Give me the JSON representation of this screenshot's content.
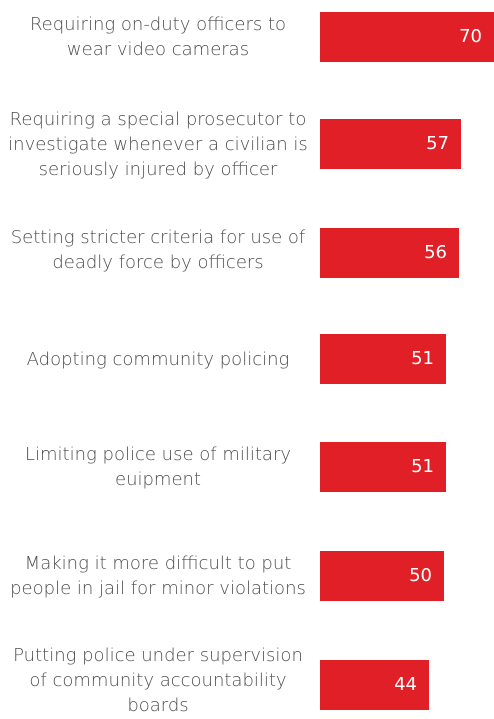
{
  "chart_data": {
    "type": "bar",
    "orientation": "horizontal",
    "categories": [
      "Requiring on-duty officers to wear video cameras",
      "Requiring a special prosecutor to investigate whenever a civilian is seriously injured by officer",
      "Setting stricter criteria for use of deadly force by officers",
      "Adopting community policing",
      "Limiting  police use of military euipment",
      "Making it more difficult to put people in jail for minor violations",
      "Putting police under supervision of community accountability boards"
    ],
    "values": [
      70,
      57,
      56,
      51,
      51,
      50,
      44
    ],
    "title": "",
    "xlabel": "",
    "ylabel": "",
    "grid": false,
    "bar_color": "#e01f26",
    "label_color": "#4d4d4d",
    "value_label_color": "#ffffff"
  }
}
